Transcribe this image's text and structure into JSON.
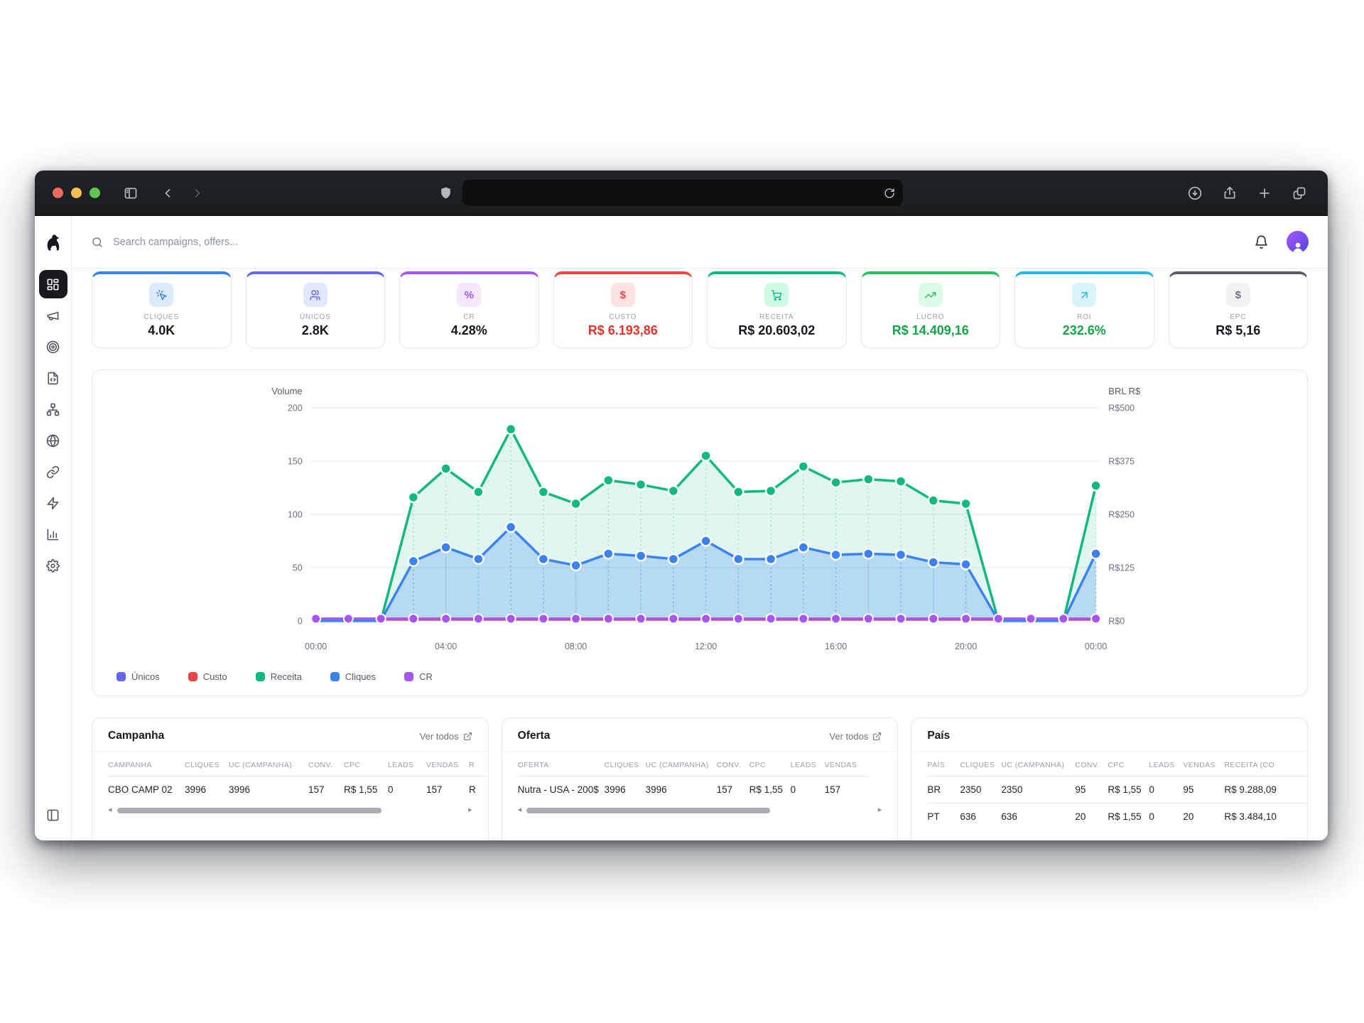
{
  "browser": {
    "address_url": "",
    "left_buttons": [
      "sidebar-toggle",
      "chevron-left",
      "chevron-right"
    ],
    "address_icons": [
      "shield",
      "reload"
    ],
    "right_buttons": [
      "download",
      "share",
      "plus",
      "tabs"
    ],
    "traffic_lights": [
      "#ee6a5f",
      "#f6be50",
      "#61c454"
    ]
  },
  "app": {
    "logo_icon": "dog-logo",
    "search_placeholder": "Search campaigns, offers...",
    "header_icons": [
      "bell-icon",
      "avatar"
    ],
    "sidebar_items": [
      {
        "name": "dashboard",
        "icon": "layout-dashboard-icon",
        "active": true
      },
      {
        "name": "campaigns",
        "icon": "megaphone-icon",
        "active": false
      },
      {
        "name": "offers",
        "icon": "target-icon",
        "active": false
      },
      {
        "name": "landing-pages",
        "icon": "file-code-icon",
        "active": false
      },
      {
        "name": "funnels",
        "icon": "network-icon",
        "active": false
      },
      {
        "name": "domains",
        "icon": "globe-icon",
        "active": false
      },
      {
        "name": "links",
        "icon": "link-icon",
        "active": false
      },
      {
        "name": "automation",
        "icon": "zap-icon",
        "active": false
      },
      {
        "name": "reports",
        "icon": "bar-chart-icon",
        "active": false
      },
      {
        "name": "settings",
        "icon": "gear-icon",
        "active": false
      }
    ],
    "sidebar_bottom_icon": "panel-left-icon"
  },
  "kpis": [
    {
      "label": "CLIQUES",
      "value": "4.0K",
      "accent": "#3b82f6",
      "tint": "#dbeafe",
      "icon": "cursor-click-icon",
      "value_color": "#16181d"
    },
    {
      "label": "ÚNICOS",
      "value": "2.8K",
      "accent": "#6366f1",
      "tint": "#e0e7ff",
      "icon": "users-icon",
      "value_color": "#16181d"
    },
    {
      "label": "CR",
      "value": "4.28%",
      "accent": "#a855f7",
      "tint": "#f3e8ff",
      "icon": "percent-glyph",
      "value_color": "#16181d"
    },
    {
      "label": "CUSTO",
      "value": "R$ 6.193,86",
      "accent": "#ef4444",
      "tint": "#fee2e2",
      "icon": "dollar-glyph",
      "value_color": "#e2342d"
    },
    {
      "label": "RECEITA",
      "value": "R$ 20.603,02",
      "accent": "#10b981",
      "tint": "#d1fae5",
      "icon": "cart-icon",
      "value_color": "#16181d"
    },
    {
      "label": "LUCRO",
      "value": "R$ 14.409,16",
      "accent": "#22c55e",
      "tint": "#dcfce7",
      "icon": "trend-up-icon",
      "value_color": "#16a34a"
    },
    {
      "label": "ROI",
      "value": "232.6%",
      "accent": "#24b8e0",
      "tint": "#d9f3fb",
      "icon": "arrow-up-right-icon",
      "value_color": "#16a34a"
    },
    {
      "label": "EPC",
      "value": "R$ 5,16",
      "accent": "#565b66",
      "tint": "#f1f2f4",
      "icon": "dollar-glyph-gray",
      "value_color": "#16181d"
    }
  ],
  "chart_data": {
    "type": "line",
    "title": "",
    "x": [
      "00:00",
      "01:00",
      "02:00",
      "03:00",
      "04:00",
      "05:00",
      "06:00",
      "07:00",
      "08:00",
      "09:00",
      "10:00",
      "11:00",
      "12:00",
      "13:00",
      "14:00",
      "15:00",
      "16:00",
      "17:00",
      "18:00",
      "19:00",
      "20:00",
      "21:00",
      "22:00",
      "23:00",
      "00:00"
    ],
    "x_tick_labels": [
      "00:00",
      "04:00",
      "08:00",
      "12:00",
      "16:00",
      "20:00",
      "00:00"
    ],
    "x_tick_indices": [
      0,
      4,
      8,
      12,
      16,
      20,
      24
    ],
    "left_axis": {
      "label": "Volume",
      "ticks": [
        0,
        50,
        100,
        150,
        200
      ],
      "range": [
        0,
        200
      ]
    },
    "right_axis": {
      "label": "BRL R$",
      "ticks": [
        "R$0",
        "R$125",
        "R$250",
        "R$375",
        "R$500"
      ],
      "range": [
        0,
        500
      ]
    },
    "grid": true,
    "legend_position": "bottom-left",
    "series": [
      {
        "name": "Únicos",
        "color": "#6366f1",
        "note": "overlaps Cliques line (not separately visible)",
        "values": [
          0,
          0,
          0,
          56,
          69,
          58,
          88,
          58,
          52,
          63,
          61,
          58,
          75,
          58,
          58,
          69,
          62,
          63,
          62,
          55,
          53,
          0,
          0,
          0,
          63
        ]
      },
      {
        "name": "Custo",
        "color": "#ef4444",
        "values": [
          1,
          1,
          1,
          1,
          1,
          1,
          1,
          1,
          1,
          1,
          1,
          1,
          1,
          1,
          1,
          1,
          1,
          1,
          1,
          1,
          1,
          1,
          1,
          1,
          1
        ]
      },
      {
        "name": "Receita",
        "color": "#10b981",
        "area": true,
        "values": [
          0,
          0,
          0,
          116,
          143,
          121,
          180,
          121,
          110,
          132,
          128,
          122,
          155,
          121,
          122,
          145,
          130,
          133,
          131,
          113,
          110,
          0,
          0,
          0,
          127
        ]
      },
      {
        "name": "Cliques",
        "color": "#3b82f6",
        "area": true,
        "values": [
          0,
          0,
          0,
          56,
          69,
          58,
          88,
          58,
          52,
          63,
          61,
          58,
          75,
          58,
          58,
          69,
          62,
          63,
          62,
          55,
          53,
          0,
          0,
          0,
          63
        ]
      },
      {
        "name": "CR",
        "color": "#a855f7",
        "values": [
          2,
          2,
          2,
          2,
          2,
          2,
          2,
          2,
          2,
          2,
          2,
          2,
          2,
          2,
          2,
          2,
          2,
          2,
          2,
          2,
          2,
          2,
          2,
          2,
          2
        ]
      }
    ],
    "legend": [
      "Únicos",
      "Custo",
      "Receita",
      "Cliques",
      "CR"
    ]
  },
  "tables": [
    {
      "title": "Campanha",
      "link_label": "Ver todos",
      "scrollbar": true,
      "thumb": "76%",
      "headers": [
        "CAMPANHA",
        "CLIQUES",
        "UC (CAMPANHA)",
        "CONV.",
        "CPC",
        "LEADS",
        "VENDAS",
        "R"
      ],
      "rows": [
        [
          "CBO CAMP 02",
          "3996",
          "3996",
          "157",
          "R$ 1,55",
          "0",
          "157",
          "R"
        ]
      ]
    },
    {
      "title": "Oferta",
      "link_label": "Ver todos",
      "scrollbar": true,
      "thumb": "70%",
      "headers": [
        "OFERTA",
        "CLIQUES",
        "UC (CAMPANHA)",
        "CONV.",
        "CPC",
        "LEADS",
        "VENDAS"
      ],
      "rows": [
        [
          "Nutra - USA - 200$",
          "3996",
          "3996",
          "157",
          "R$ 1,55",
          "0",
          "157"
        ]
      ]
    },
    {
      "title": "País",
      "link_label": "",
      "scrollbar": false,
      "thumb": "0%",
      "headers": [
        "PAÍS",
        "CLIQUES",
        "UC (CAMPANHA)",
        "CONV.",
        "CPC",
        "LEADS",
        "VENDAS",
        "RECEITA (CO"
      ],
      "rows": [
        [
          "BR",
          "2350",
          "2350",
          "95",
          "R$ 1,55",
          "0",
          "95",
          "R$ 9.288,09"
        ],
        [
          "PT",
          "636",
          "636",
          "20",
          "R$ 1,55",
          "0",
          "20",
          "R$ 3.484,10"
        ]
      ]
    }
  ]
}
